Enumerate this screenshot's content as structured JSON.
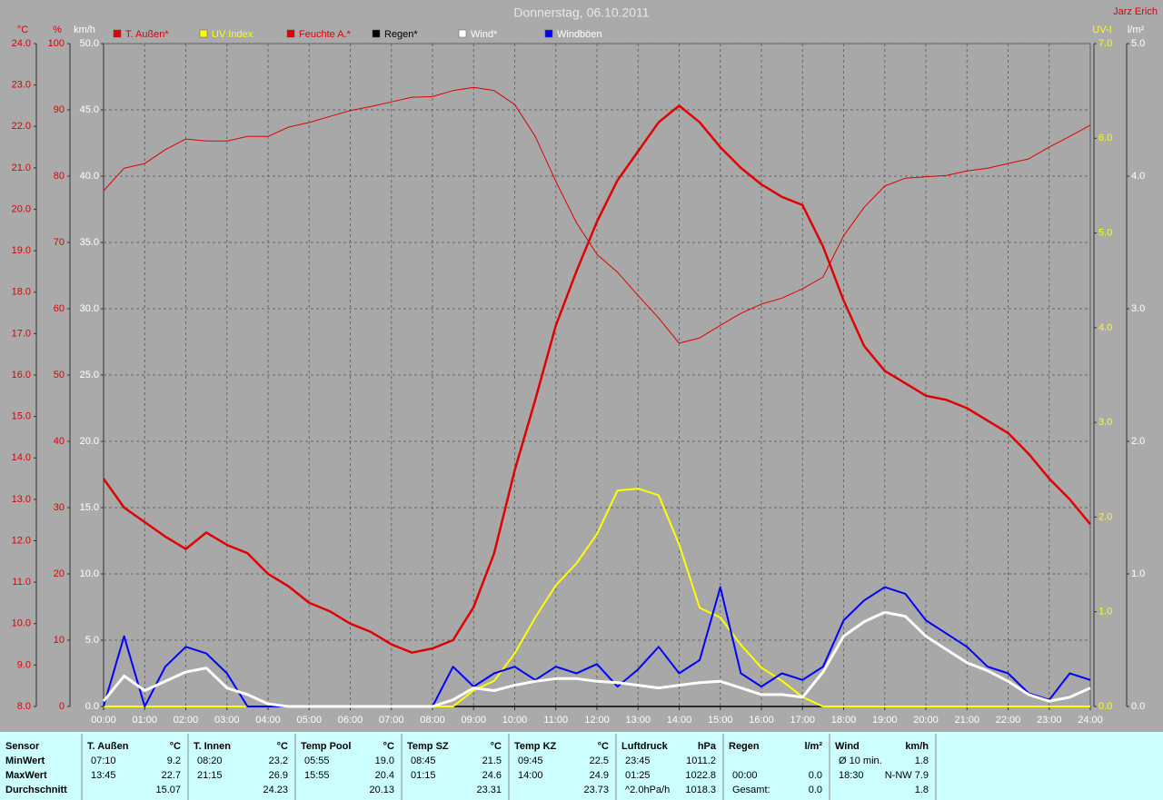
{
  "chart_data": {
    "type": "line",
    "title": "Donnerstag, 06.10.2011",
    "author": "Jarz Erich",
    "x": [
      0,
      0.5,
      1,
      1.5,
      2,
      2.5,
      3,
      3.5,
      4,
      4.5,
      5,
      5.5,
      6,
      6.5,
      7,
      7.5,
      8,
      8.5,
      9,
      9.5,
      10,
      10.5,
      11,
      11.5,
      12,
      12.5,
      13,
      13.5,
      14,
      14.5,
      15,
      15.5,
      16,
      16.5,
      17,
      17.5,
      18,
      18.5,
      19,
      19.5,
      20,
      20.5,
      21,
      21.5,
      22,
      22.5,
      23,
      23.5,
      24
    ],
    "xlim": [
      0,
      24
    ],
    "xticks": [
      {
        "value": 0,
        "label": "00:00"
      },
      {
        "value": 1,
        "label": "01:00"
      },
      {
        "value": 2,
        "label": "02:00"
      },
      {
        "value": 3,
        "label": "03:00"
      },
      {
        "value": 4,
        "label": "04:00"
      },
      {
        "value": 5,
        "label": "05:00"
      },
      {
        "value": 6,
        "label": "06:00"
      },
      {
        "value": 7,
        "label": "07:00"
      },
      {
        "value": 8,
        "label": "08:00"
      },
      {
        "value": 9,
        "label": "09:00"
      },
      {
        "value": 10,
        "label": "10:00"
      },
      {
        "value": 11,
        "label": "11:00"
      },
      {
        "value": 12,
        "label": "12:00"
      },
      {
        "value": 13,
        "label": "13:00"
      },
      {
        "value": 14,
        "label": "14:00"
      },
      {
        "value": 15,
        "label": "15:00"
      },
      {
        "value": 16,
        "label": "16:00"
      },
      {
        "value": 17,
        "label": "17:00"
      },
      {
        "value": 18,
        "label": "18:00"
      },
      {
        "value": 19,
        "label": "19:00"
      },
      {
        "value": 20,
        "label": "20:00"
      },
      {
        "value": 21,
        "label": "21:00"
      },
      {
        "value": 22,
        "label": "22:00"
      },
      {
        "value": 23,
        "label": "23:00"
      },
      {
        "value": 24,
        "label": "24:00"
      }
    ],
    "y_label": "°C",
    "y_color": "#e00000",
    "ylim": [
      8,
      24
    ],
    "yticks": [
      {
        "value": 8,
        "label": "8.0"
      },
      {
        "value": 9,
        "label": "9.0"
      },
      {
        "value": 10,
        "label": "10.0"
      },
      {
        "value": 11,
        "label": "11.0"
      },
      {
        "value": 12,
        "label": "12.0"
      },
      {
        "value": 13,
        "label": "13.0"
      },
      {
        "value": 14,
        "label": "14.0"
      },
      {
        "value": 15,
        "label": "15.0"
      },
      {
        "value": 16,
        "label": "16.0"
      },
      {
        "value": 17,
        "label": "17.0"
      },
      {
        "value": 18,
        "label": "18.0"
      },
      {
        "value": 19,
        "label": "19.0"
      },
      {
        "value": 20,
        "label": "20.0"
      },
      {
        "value": 21,
        "label": "21.0"
      },
      {
        "value": 22,
        "label": "22.0"
      },
      {
        "value": 23,
        "label": "23.0"
      },
      {
        "value": 24,
        "label": "24.0"
      }
    ],
    "y2_label": "%",
    "y2_color": "#e00000",
    "y2lim": [
      0,
      100
    ],
    "y2ticks": [
      0,
      10,
      20,
      30,
      40,
      50,
      60,
      70,
      80,
      90,
      100
    ],
    "y3_label": "km/h",
    "y3_color": "#ffffff",
    "y3lim": [
      0,
      50
    ],
    "y3ticks": [
      {
        "value": 0,
        "label": "0.0"
      },
      {
        "value": 5,
        "label": "5.0"
      },
      {
        "value": 10,
        "label": "10.0"
      },
      {
        "value": 15,
        "label": "15.0"
      },
      {
        "value": 20,
        "label": "20.0"
      },
      {
        "value": 25,
        "label": "25.0"
      },
      {
        "value": 30,
        "label": "30.0"
      },
      {
        "value": 35,
        "label": "35.0"
      },
      {
        "value": 40,
        "label": "40.0"
      },
      {
        "value": 45,
        "label": "45.0"
      },
      {
        "value": 50,
        "label": "50.0"
      }
    ],
    "y4_label": "UV-I",
    "y4_color": "#ffff00",
    "y4lim": [
      0,
      7
    ],
    "y4ticks": [
      {
        "value": 0,
        "label": "0.0"
      },
      {
        "value": 1,
        "label": "1.0"
      },
      {
        "value": 2,
        "label": "2.0"
      },
      {
        "value": 3,
        "label": "3.0"
      },
      {
        "value": 4,
        "label": "4.0"
      },
      {
        "value": 5,
        "label": "5.0"
      },
      {
        "value": 6,
        "label": "6.0"
      },
      {
        "value": 7,
        "label": "7.0"
      }
    ],
    "y5_label": "l/m²",
    "y5_color": "#ffffff",
    "y5lim": [
      0,
      5
    ],
    "y5ticks": [
      {
        "value": 0,
        "label": "0.0"
      },
      {
        "value": 1,
        "label": "1.0"
      },
      {
        "value": 2,
        "label": "2.0"
      },
      {
        "value": 3,
        "label": "3.0"
      },
      {
        "value": 4,
        "label": "4.0"
      },
      {
        "value": 5,
        "label": "5.0"
      }
    ],
    "grid": true,
    "series": [
      {
        "name": "T. Außen*",
        "color": "#e00000",
        "label_color": "#e00000",
        "axis": "y",
        "line_width": 2.5,
        "values": [
          13.5,
          12.8,
          12.45,
          12.1,
          11.8,
          12.2,
          11.9,
          11.7,
          11.2,
          10.9,
          10.5,
          10.3,
          10.0,
          9.8,
          9.5,
          9.3,
          9.4,
          9.6,
          10.4,
          11.7,
          13.7,
          15.4,
          17.2,
          18.5,
          19.7,
          20.7,
          21.4,
          22.1,
          22.5,
          22.1,
          21.5,
          21.0,
          20.6,
          20.3,
          20.1,
          19.1,
          17.8,
          16.7,
          16.1,
          15.8,
          15.5,
          15.4,
          15.2,
          14.9,
          14.6,
          14.1,
          13.5,
          13.0,
          12.4
        ]
      },
      {
        "name": "UV Index",
        "color": "#ffff00",
        "label_color": "#ffff00",
        "axis": "y4",
        "line_width": 2,
        "values": [
          0,
          0,
          0,
          0,
          0,
          0,
          0,
          0,
          0,
          0,
          0,
          0,
          0,
          0,
          0,
          0,
          0,
          0,
          0.17,
          0.27,
          0.56,
          0.94,
          1.28,
          1.51,
          1.82,
          2.28,
          2.3,
          2.23,
          1.71,
          1.04,
          0.94,
          0.65,
          0.41,
          0.27,
          0.1,
          0,
          0,
          0,
          0,
          0,
          0,
          0,
          0,
          0,
          0,
          0,
          0,
          0,
          0
        ]
      },
      {
        "name": "Feuchte A.*",
        "color": "#e00000",
        "label_color": "#e00000",
        "axis": "y2",
        "line_width": 1,
        "values": [
          77.8,
          81.2,
          81.9,
          84,
          85.6,
          85.3,
          85.3,
          86,
          86,
          87.4,
          88.1,
          89,
          89.9,
          90.5,
          91.2,
          91.9,
          92,
          92.9,
          93.4,
          92.9,
          90.8,
          86,
          79.2,
          73,
          68.2,
          65.5,
          62,
          58.6,
          54.8,
          55.6,
          57.5,
          59.3,
          60.7,
          61.6,
          63,
          64.8,
          71,
          75.3,
          78.5,
          79.7,
          79.9,
          80.1,
          80.8,
          81.2,
          81.9,
          82.6,
          84.4,
          86,
          87.7
        ]
      },
      {
        "name": "Regen*",
        "color": "#000000",
        "label_color": "#000000",
        "axis": "y5",
        "line_width": 1.5,
        "values": [
          0,
          0,
          0,
          0,
          0,
          0,
          0,
          0,
          0,
          0,
          0,
          0,
          0,
          0,
          0,
          0,
          0,
          0,
          0,
          0,
          0,
          0,
          0,
          0,
          0,
          0,
          0,
          0,
          0,
          0,
          0,
          0,
          0,
          0,
          0,
          0,
          0,
          0,
          0,
          0,
          0,
          0,
          0,
          0,
          0,
          0,
          0,
          0,
          0
        ]
      },
      {
        "name": "Wind*",
        "color": "#ffffff",
        "label_color": "#ffffff",
        "axis": "y3",
        "line_width": 3,
        "values": [
          0.4,
          2.3,
          1.2,
          1.9,
          2.6,
          2.9,
          1.4,
          0.9,
          0.2,
          0,
          0,
          0,
          0,
          0,
          0,
          0,
          0,
          0.5,
          1.4,
          1.2,
          1.6,
          1.9,
          2.1,
          2.1,
          1.9,
          1.8,
          1.6,
          1.4,
          1.6,
          1.8,
          1.9,
          1.4,
          0.9,
          0.9,
          0.7,
          2.6,
          5.3,
          6.4,
          7.1,
          6.8,
          5.3,
          4.3,
          3.3,
          2.7,
          1.9,
          0.9,
          0.4,
          0.7,
          1.4
        ]
      },
      {
        "name": "Windböen",
        "color": "#0000ff",
        "label_color": "#ffffff",
        "axis": "y3",
        "line_width": 2,
        "values": [
          0,
          5.3,
          0,
          3.0,
          4.5,
          4.0,
          2.5,
          0,
          0,
          0,
          0,
          0,
          0,
          0,
          0,
          0,
          0,
          3.0,
          1.5,
          2.5,
          3.0,
          2.0,
          3.0,
          2.5,
          3.2,
          1.5,
          2.8,
          4.5,
          2.5,
          3.5,
          9.0,
          2.5,
          1.5,
          2.5,
          2.0,
          3.0,
          6.5,
          8.0,
          9.0,
          8.5,
          6.5,
          5.5,
          4.5,
          3.0,
          2.5,
          1.0,
          0.5,
          2.5,
          2.0
        ]
      }
    ]
  },
  "stats": {
    "row_labels": [
      "Sensor",
      "MinWert",
      "MaxWert",
      "Durchschnitt"
    ],
    "groups": [
      {
        "name": "T. Außen",
        "unit": "°C",
        "rows": [
          {
            "time": "07:10",
            "value": "9.2"
          },
          {
            "time": "13:45",
            "value": "22.7"
          },
          {
            "value": "15.07"
          }
        ]
      },
      {
        "name": "T. Innen",
        "unit": "°C",
        "rows": [
          {
            "time": "08:20",
            "value": "23.2"
          },
          {
            "time": "21:15",
            "value": "26.9"
          },
          {
            "value": "24.23"
          }
        ]
      },
      {
        "name": "Temp Pool",
        "unit": "°C",
        "rows": [
          {
            "time": "05:55",
            "value": "19.0"
          },
          {
            "time": "15:55",
            "value": "20.4"
          },
          {
            "value": "20.13"
          }
        ]
      },
      {
        "name": "Temp SZ",
        "unit": "°C",
        "rows": [
          {
            "time": "08:45",
            "value": "21.5"
          },
          {
            "time": "01:15",
            "value": "24.6"
          },
          {
            "value": "23.31"
          }
        ]
      },
      {
        "name": "Temp KZ",
        "unit": "°C",
        "rows": [
          {
            "time": "09:45",
            "value": "22.5"
          },
          {
            "time": "14:00",
            "value": "24.9"
          },
          {
            "value": "23.73"
          }
        ]
      },
      {
        "name": "Luftdruck",
        "unit": "hPa",
        "rows": [
          {
            "time": "23:45",
            "value": "1011.2"
          },
          {
            "time": "01:25",
            "value": "1022.8"
          },
          {
            "time": "^2.0hPa/h",
            "value": "1018.3"
          }
        ]
      },
      {
        "name": "Regen",
        "unit": "l/m²",
        "rows": [
          null,
          {
            "time": "00:00",
            "value": "0.0"
          },
          {
            "time": "Gesamt:",
            "value": "0.0"
          }
        ]
      },
      {
        "name": "Wind",
        "unit": "km/h",
        "rows": [
          {
            "time": "Ø 10 min.",
            "value": "1.8"
          },
          {
            "time": "18:30",
            "value": "N-NW 7.9"
          },
          {
            "value": "1.8"
          }
        ]
      }
    ]
  }
}
